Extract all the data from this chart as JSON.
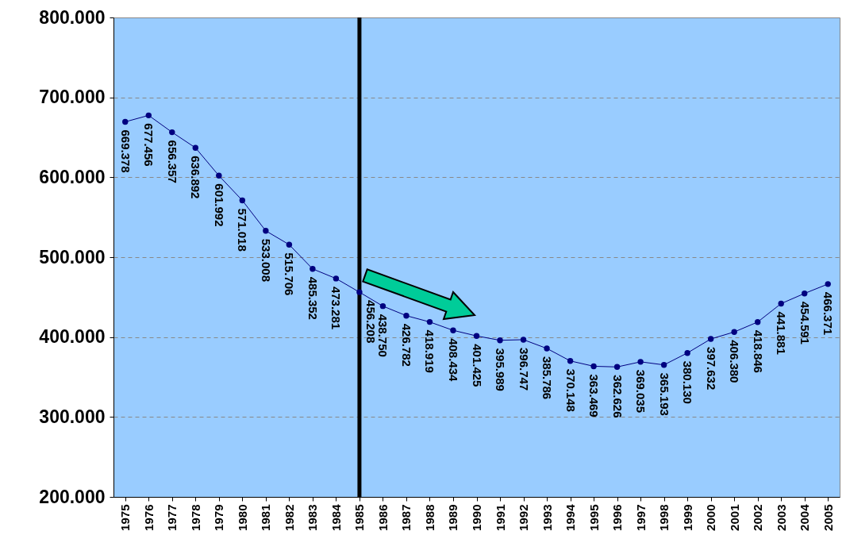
{
  "chart_data": {
    "type": "line",
    "categories": [
      "1975",
      "1976",
      "1977",
      "1978",
      "1979",
      "1980",
      "1981",
      "1982",
      "1983",
      "1984",
      "1985",
      "1986",
      "1987",
      "1988",
      "1989",
      "1990",
      "1991",
      "1992",
      "1993",
      "1994",
      "1995",
      "1996",
      "1997",
      "1998",
      "1999",
      "2000",
      "2001",
      "2002",
      "2003",
      "2004",
      "2005"
    ],
    "series": [
      {
        "color": "#000080",
        "values": [
          669378,
          677456,
          656357,
          636892,
          601992,
          571018,
          533008,
          515706,
          485352,
          473281,
          456208,
          438750,
          426782,
          418919,
          408434,
          401425,
          395989,
          396747,
          385786,
          370148,
          363469,
          362626,
          369035,
          365193,
          380130,
          397632,
          406380,
          418846,
          441881,
          454591,
          466371
        ],
        "value_labels": [
          "669.378",
          "677.456",
          "656.357",
          "636.892",
          "601.992",
          "571.018",
          "533.008",
          "515.706",
          "485.352",
          "473.281",
          "456.208",
          "438.750",
          "426.782",
          "418.919",
          "408.434",
          "401.425",
          "395.989",
          "396.747",
          "385.786",
          "370.148",
          "363.469",
          "362.626",
          "369.035",
          "365.193",
          "380.130",
          "397.632",
          "406.380",
          "418.846",
          "441.881",
          "454.591",
          "466.371"
        ]
      }
    ],
    "ylim": [
      200000,
      800000
    ],
    "yticks": [
      {
        "value": 200000,
        "label": "200.000"
      },
      {
        "value": 300000,
        "label": "300.000"
      },
      {
        "value": 400000,
        "label": "400.000"
      },
      {
        "value": 500000,
        "label": "500.000"
      },
      {
        "value": 600000,
        "label": "600.000"
      },
      {
        "value": 700000,
        "label": "700.000"
      },
      {
        "value": 800000,
        "label": "800.000"
      }
    ],
    "grid": "y",
    "marker": "circle",
    "line_style": "solid",
    "ref_lines": [
      {
        "axis": "x",
        "value": "1985",
        "color": "#000000"
      }
    ]
  }
}
